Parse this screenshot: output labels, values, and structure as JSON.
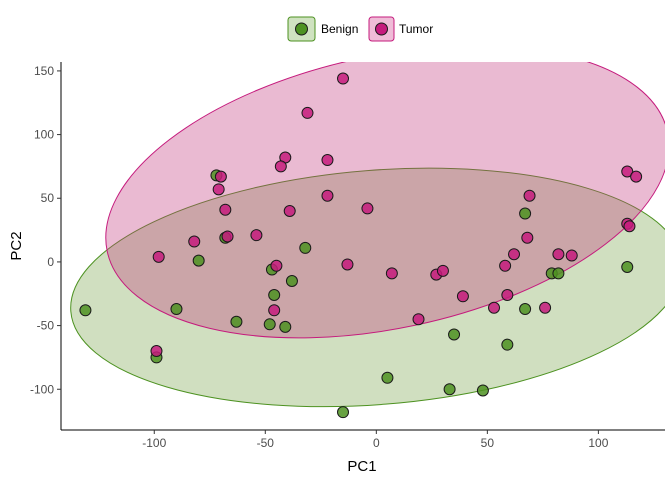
{
  "chart_data": {
    "type": "scatter",
    "xlabel": "PC1",
    "ylabel": "PC2",
    "xlim": [
      -142,
      130
    ],
    "ylim": [
      -132,
      157
    ],
    "x_ticks": [
      -100,
      -50,
      0,
      50,
      100
    ],
    "y_ticks": [
      -100,
      -50,
      0,
      50,
      100,
      150
    ],
    "x_tick_labels": [
      "-100",
      "-50",
      "0",
      "50",
      "100"
    ],
    "y_tick_labels": [
      "-100",
      "-50",
      "0",
      "50",
      "100",
      "150"
    ],
    "grid": false,
    "legend_position": "top",
    "series": [
      {
        "name": "Benign",
        "color": "#4d9221",
        "fill": "#6e9a3a",
        "ellipse": {
          "cx": 0,
          "cy": -20,
          "rx": 138,
          "ry": 92,
          "angle_deg": -4.5
        },
        "points": [
          [
            -131,
            -38
          ],
          [
            -99,
            -75
          ],
          [
            -90,
            -37
          ],
          [
            -80,
            1
          ],
          [
            -68,
            19
          ],
          [
            -63,
            -47
          ],
          [
            -72,
            68
          ],
          [
            -47,
            -6
          ],
          [
            -46,
            -26
          ],
          [
            -48,
            -49
          ],
          [
            -41,
            -51
          ],
          [
            -38,
            -15
          ],
          [
            -32,
            11
          ],
          [
            -15,
            -118
          ],
          [
            5,
            -91
          ],
          [
            35,
            -57
          ],
          [
            33,
            -100
          ],
          [
            48,
            -101
          ],
          [
            59,
            -65
          ],
          [
            67,
            38
          ],
          [
            67,
            -37
          ],
          [
            79,
            -9
          ],
          [
            82,
            -9
          ],
          [
            113,
            -4
          ]
        ]
      },
      {
        "name": "Tumor",
        "color": "#c51b7d",
        "fill": "#c0367a",
        "ellipse": {
          "cx": 5,
          "cy": 55,
          "rx": 129,
          "ry": 107,
          "angle_deg": -12
        },
        "points": [
          [
            -15,
            144
          ],
          [
            -31,
            117
          ],
          [
            -41,
            82
          ],
          [
            -43,
            75
          ],
          [
            -22,
            80
          ],
          [
            -22,
            52
          ],
          [
            -70,
            67
          ],
          [
            -71,
            57
          ],
          [
            -68,
            41
          ],
          [
            -39,
            40
          ],
          [
            -67,
            20
          ],
          [
            -54,
            21
          ],
          [
            -82,
            16
          ],
          [
            -98,
            4
          ],
          [
            -99,
            -70
          ],
          [
            -45,
            -3
          ],
          [
            -46,
            -38
          ],
          [
            -13,
            -2
          ],
          [
            -4,
            42
          ],
          [
            7,
            -9
          ],
          [
            27,
            -10
          ],
          [
            30,
            -7
          ],
          [
            19,
            -45
          ],
          [
            39,
            -27
          ],
          [
            53,
            -36
          ],
          [
            58,
            -3
          ],
          [
            59,
            -26
          ],
          [
            62,
            6
          ],
          [
            68,
            19
          ],
          [
            69,
            52
          ],
          [
            76,
            -36
          ],
          [
            82,
            6
          ],
          [
            88,
            5
          ],
          [
            113,
            71
          ],
          [
            117,
            67
          ],
          [
            113,
            30
          ],
          [
            114,
            28
          ]
        ]
      }
    ]
  }
}
